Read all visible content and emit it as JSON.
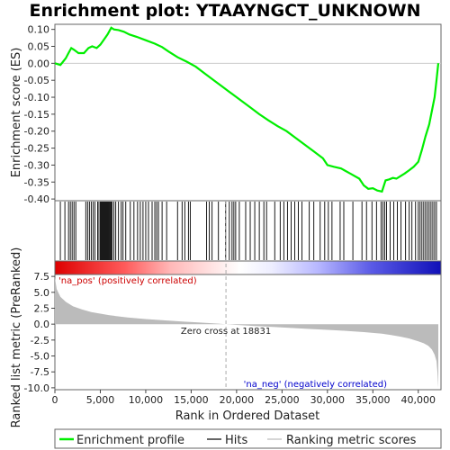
{
  "chart_data": {
    "type": "line",
    "title": "Enrichment plot: YTAAYNGCT_UNKNOWN",
    "xlabel": "Rank in Ordered Dataset",
    "top_ylabel": "Enrichment score (ES)",
    "bottom_ylabel": "Ranked list metric (PreRanked)",
    "xlim": [
      0,
      42500
    ],
    "x_ticks": [
      0,
      5000,
      10000,
      15000,
      20000,
      25000,
      30000,
      35000,
      40000
    ],
    "x_tick_labels": [
      "0",
      "5,000",
      "10,000",
      "15,000",
      "20,000",
      "25,000",
      "30,000",
      "35,000",
      "40,000"
    ],
    "es_ylim": [
      -0.405,
      0.115
    ],
    "es_ticks": [
      0.1,
      0.05,
      0.0,
      -0.05,
      -0.1,
      -0.15,
      -0.2,
      -0.25,
      -0.3,
      -0.35,
      -0.4
    ],
    "es_tick_labels": [
      "0.10",
      "0.05",
      "0.00",
      "-0.05",
      "-0.10",
      "-0.15",
      "-0.20",
      "-0.25",
      "-0.30",
      "-0.35",
      "-0.40"
    ],
    "metric_ylim": [
      -10.3,
      7.8
    ],
    "metric_ticks": [
      7.5,
      5.0,
      2.5,
      0.0,
      -2.5,
      -5.0,
      -7.5,
      -10.0
    ],
    "metric_tick_labels": [
      "7.5",
      "5.0",
      "2.5",
      "0.0",
      "-2.5",
      "-5.0",
      "-7.5",
      "-10.0"
    ],
    "zero_cross_rank": 18831,
    "zero_cross_label": "Zero cross at 18831",
    "pos_label": "'na_pos' (positively correlated)",
    "neg_label": "'na_neg' (negatively correlated)",
    "enrichment_profile": {
      "name": "Enrichment profile",
      "x": [
        0,
        600,
        900,
        1200,
        1500,
        1800,
        2100,
        2600,
        3200,
        3700,
        4100,
        4600,
        5000,
        5400,
        5800,
        6200,
        6500,
        7000,
        7600,
        8200,
        9000,
        10000,
        11000,
        11800,
        12500,
        13500,
        14500,
        15500,
        16500,
        17500,
        18500,
        19500,
        20500,
        21500,
        22500,
        23500,
        24500,
        25500,
        26500,
        27500,
        28500,
        29500,
        30000,
        30700,
        31500,
        32500,
        33500,
        34000,
        34500,
        35000,
        35500,
        36000,
        36400,
        36800,
        37200,
        37600,
        38000,
        38500,
        39000,
        39500,
        40000,
        40400,
        40800,
        41200,
        41500,
        41800,
        42000,
        42200
      ],
      "y": [
        0.0,
        -0.005,
        0.005,
        0.015,
        0.03,
        0.045,
        0.04,
        0.03,
        0.03,
        0.045,
        0.05,
        0.045,
        0.055,
        0.07,
        0.085,
        0.105,
        0.1,
        0.098,
        0.093,
        0.085,
        0.078,
        0.068,
        0.058,
        0.048,
        0.035,
        0.018,
        0.005,
        -0.01,
        -0.03,
        -0.05,
        -0.07,
        -0.09,
        -0.11,
        -0.13,
        -0.15,
        -0.168,
        -0.185,
        -0.2,
        -0.22,
        -0.24,
        -0.26,
        -0.28,
        -0.3,
        -0.305,
        -0.31,
        -0.325,
        -0.34,
        -0.36,
        -0.37,
        -0.368,
        -0.375,
        -0.378,
        -0.345,
        -0.342,
        -0.338,
        -0.34,
        -0.333,
        -0.325,
        -0.315,
        -0.305,
        -0.29,
        -0.255,
        -0.215,
        -0.18,
        -0.14,
        -0.1,
        -0.05,
        0.0
      ]
    },
    "hits": {
      "name": "Hits",
      "x": [
        600,
        1100,
        1500,
        1700,
        1900,
        2100,
        2300,
        3400,
        3600,
        3800,
        4000,
        4200,
        4400,
        4700,
        4850,
        5000,
        5100,
        5200,
        5300,
        5400,
        5500,
        5600,
        5700,
        5800,
        5900,
        6000,
        6100,
        6200,
        6300,
        6500,
        6700,
        7000,
        7300,
        7500,
        7800,
        8300,
        8700,
        9100,
        9400,
        9700,
        10000,
        10300,
        10700,
        11000,
        11200,
        11400,
        11800,
        12300,
        13500,
        14000,
        14300,
        14700,
        14900,
        16700,
        17000,
        17300,
        18000,
        18800,
        19200,
        19500,
        19700,
        19900,
        20300,
        21000,
        21500,
        22000,
        22500,
        23000,
        23300,
        24200,
        24800,
        25200,
        25600,
        26000,
        26400,
        26800,
        27200,
        28000,
        28500,
        29200,
        29700,
        30100,
        30500,
        31400,
        31800,
        32800,
        33800,
        34300,
        34900,
        35400,
        35900,
        36100,
        36300,
        36500,
        36900,
        37300,
        37700,
        38100,
        38600,
        39000,
        39300,
        39700,
        40000,
        40200,
        40400,
        40600,
        40800,
        41000,
        41200,
        41400,
        41600,
        41800,
        42000
      ]
    },
    "ranking_metric": {
      "name": "Ranking metric scores",
      "x": [
        0,
        200,
        600,
        1200,
        2000,
        3000,
        4000,
        6000,
        8000,
        10000,
        12000,
        14000,
        16000,
        18000,
        18831,
        20000,
        22000,
        24000,
        26000,
        28000,
        30000,
        32000,
        34000,
        36000,
        37000,
        38000,
        39000,
        40000,
        40600,
        41100,
        41500,
        41800,
        42000,
        42100,
        42200
      ],
      "y": [
        7.3,
        5.5,
        4.3,
        3.5,
        2.8,
        2.3,
        1.9,
        1.4,
        1.05,
        0.8,
        0.6,
        0.4,
        0.25,
        0.08,
        0.0,
        -0.12,
        -0.3,
        -0.45,
        -0.6,
        -0.75,
        -0.9,
        -1.05,
        -1.25,
        -1.5,
        -1.7,
        -1.95,
        -2.25,
        -2.7,
        -3.0,
        -3.4,
        -4.0,
        -4.8,
        -5.8,
        -7.5,
        -10.0
      ]
    }
  },
  "legend": {
    "items": [
      {
        "label": "Enrichment profile",
        "color": "#00ee00"
      },
      {
        "label": "Hits",
        "color": "#000000"
      },
      {
        "label": "Ranking metric scores",
        "color": "#bbbbbb"
      }
    ]
  },
  "colors": {
    "profile": "#00ee00",
    "hits": "#000000",
    "metric": "#bbbbbb",
    "zero_line": "#aaaaaa",
    "pos_text": "#cc0000",
    "neg_text": "#0000cc",
    "heat_pos": "#ee0000",
    "heat_neg": "#0000cc"
  }
}
